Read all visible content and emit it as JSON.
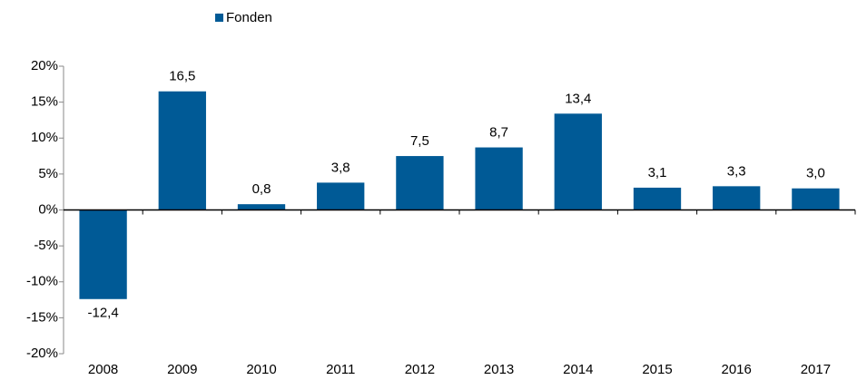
{
  "chart_data": {
    "type": "bar",
    "categories": [
      "2008",
      "2009",
      "2010",
      "2011",
      "2012",
      "2013",
      "2014",
      "2015",
      "2016",
      "2017"
    ],
    "series": [
      {
        "name": "Fonden",
        "color": "#005a96",
        "values": [
          -12.4,
          16.5,
          0.8,
          3.8,
          7.5,
          8.7,
          13.4,
          3.1,
          3.3,
          3.0
        ],
        "value_labels": [
          "-12,4",
          "16,5",
          "0,8",
          "3,8",
          "7,5",
          "8,7",
          "13,4",
          "3,1",
          "3,3",
          "3,0"
        ]
      }
    ],
    "ylim": [
      -20,
      20
    ],
    "yticks": [
      {
        "value": -20,
        "label": "-20%"
      },
      {
        "value": -15,
        "label": "-15%"
      },
      {
        "value": -10,
        "label": "-10%"
      },
      {
        "value": -5,
        "label": "-5%"
      },
      {
        "value": 0,
        "label": "0%"
      },
      {
        "value": 5,
        "label": "5%"
      },
      {
        "value": 10,
        "label": "10%"
      },
      {
        "value": 15,
        "label": "15%"
      },
      {
        "value": 20,
        "label": "20%"
      }
    ],
    "grid": false,
    "legend": "top"
  }
}
